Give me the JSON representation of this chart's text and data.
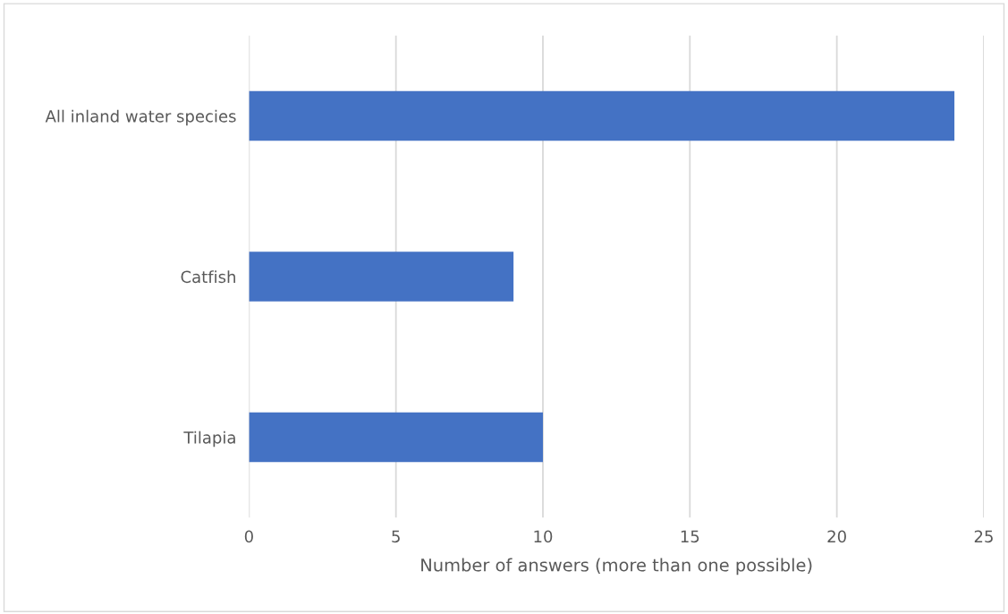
{
  "chart_data": {
    "type": "bar",
    "orientation": "horizontal",
    "categories": [
      "All inland water species",
      "Catfish",
      "Tilapia"
    ],
    "values": [
      24,
      9,
      10
    ],
    "color": "#4472c4",
    "xlabel": "Number of answers (more than one possible)",
    "xlim": [
      0,
      25
    ],
    "xticks": [
      0,
      5,
      10,
      15,
      20,
      25
    ],
    "grid": "x"
  }
}
